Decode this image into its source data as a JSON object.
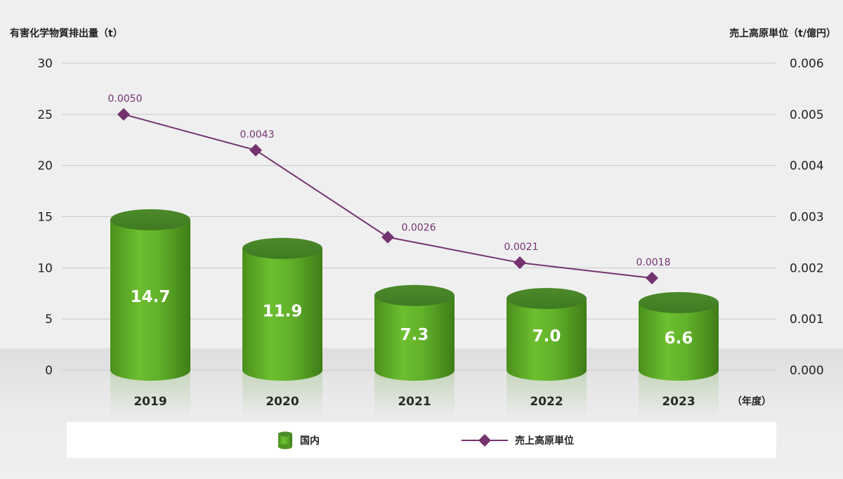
{
  "chart_data": {
    "type": "bar",
    "title": "",
    "categories": [
      "2019",
      "2020",
      "2021",
      "2022",
      "2023"
    ],
    "left_axis": {
      "label": "有害化学物質排出量（t）",
      "ylim": [
        0,
        30
      ],
      "ticks": [
        0,
        5,
        10,
        15,
        20,
        25,
        30
      ],
      "tick_labels": [
        "0",
        "5",
        "10",
        "15",
        "20",
        "25",
        "30"
      ]
    },
    "right_axis": {
      "label": "売上高原単位（t/億円）",
      "ylim": [
        0,
        0.006
      ],
      "ticks": [
        0,
        0.001,
        0.002,
        0.003,
        0.004,
        0.005,
        0.006
      ],
      "tick_labels": [
        "0.000",
        "0.001",
        "0.002",
        "0.003",
        "0.004",
        "0.005",
        "0.006"
      ]
    },
    "x_unit_label": "（年度）",
    "grid": true,
    "series": [
      {
        "name": "国内",
        "type": "bar",
        "axis": "left",
        "values": [
          14.7,
          11.9,
          7.3,
          7.0,
          6.6
        ],
        "labels": [
          "14.7",
          "11.9",
          "7.3",
          "7.0",
          "6.6"
        ],
        "color": "#5ea72a"
      },
      {
        "name": "売上高原単位",
        "type": "line",
        "axis": "right",
        "values": [
          0.005,
          0.0043,
          0.0026,
          0.0021,
          0.0018
        ],
        "labels": [
          "0.0050",
          "0.0043",
          "0.0026",
          "0.0021",
          "0.0018"
        ],
        "color": "#74336f"
      }
    ],
    "legend_position": "bottom"
  }
}
